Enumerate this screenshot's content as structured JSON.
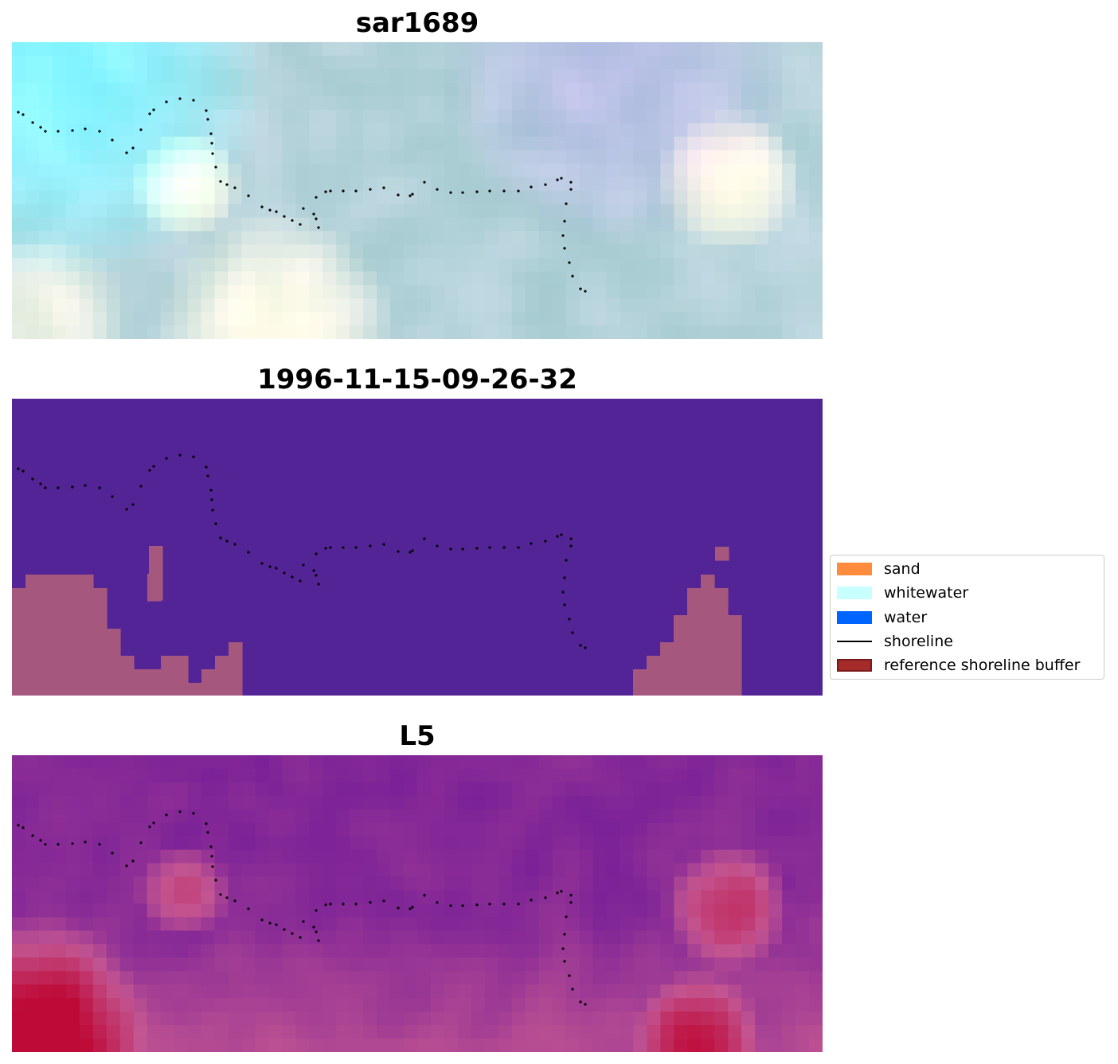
{
  "panels": [
    {
      "title": "sar1689",
      "kind": "rgb"
    },
    {
      "title": "1996-11-15-09-26-32",
      "kind": "classification"
    },
    {
      "title": "L5",
      "kind": "index"
    }
  ],
  "legend": {
    "items": [
      {
        "label": "sand",
        "color": "#ff8c3c",
        "type": "patch"
      },
      {
        "label": "whitewater",
        "color": "#c8ffff",
        "type": "patch"
      },
      {
        "label": "water",
        "color": "#0064ff",
        "type": "patch"
      },
      {
        "label": "shoreline",
        "color": "#000000",
        "type": "line"
      },
      {
        "label": "reference shoreline buffer",
        "color": "#a52a2a",
        "type": "patch-outlined",
        "edge": "#7a1a1a"
      }
    ]
  },
  "colors": {
    "classification_background": "#532496",
    "classification_sand_overlay": "#a6577e",
    "shoreline_points": "#000000"
  }
}
